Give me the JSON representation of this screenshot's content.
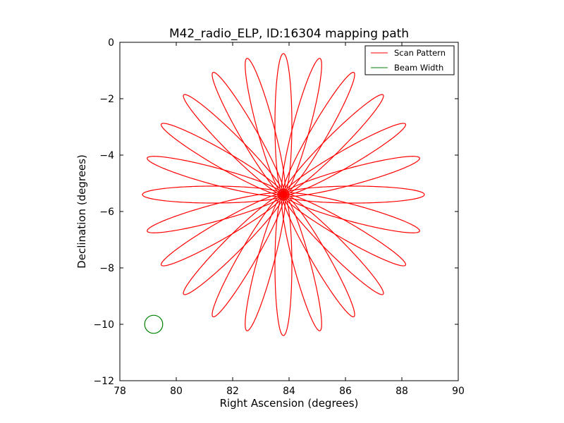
{
  "chart_data": {
    "type": "line",
    "title": "M42_radio_ELP, ID:16304 mapping path",
    "xlabel": "Right Ascension (degrees)",
    "ylabel": "Declination (degrees)",
    "xlim": [
      78,
      90
    ],
    "ylim": [
      -12,
      0
    ],
    "xticks": [
      78,
      80,
      82,
      84,
      86,
      88,
      90
    ],
    "yticks": [
      0,
      -2,
      -4,
      -6,
      -8,
      -10,
      -12
    ],
    "grid": false,
    "legend": {
      "placement": "top-right",
      "entries": [
        {
          "label": "Scan Pattern",
          "color": "#ff0000"
        },
        {
          "label": "Beam Width",
          "color": "#008000"
        }
      ]
    },
    "series": [
      {
        "name": "Scan Pattern",
        "kind": "rosette",
        "color": "#ff0000",
        "center": [
          83.8,
          -5.4
        ],
        "petals": 12,
        "radius": 5.0,
        "petal_width_ratio": 0.12,
        "start_angle_deg": 90
      },
      {
        "name": "Beam Width",
        "kind": "circle",
        "color": "#008000",
        "center": [
          79.2,
          -10.0
        ],
        "radius": 0.32
      }
    ]
  }
}
